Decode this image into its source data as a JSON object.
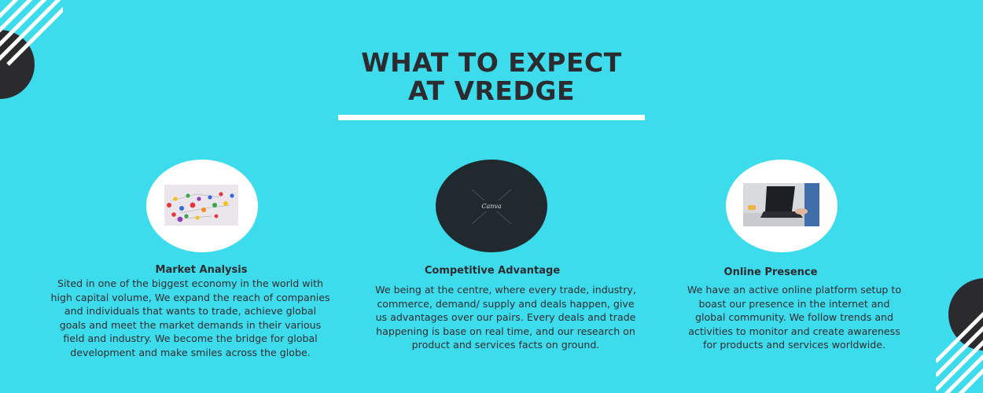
{
  "title": {
    "line1": "WHAT TO EXPECT",
    "line2": "AT VREDGE"
  },
  "colors": {
    "background": "#3ddcec",
    "text": "#2c2c30",
    "circle": "#ffffff",
    "dark_circle": "#20292d",
    "underline": "#ffffff",
    "decoration": "#2b2b2e"
  },
  "cards": [
    {
      "heading": "Market Analysis",
      "image": "pawn-network-photo",
      "body": "Sited in one of the biggest economy in the world with high capital volume, We expand the reach of companies and individuals that wants to trade, achieve global goals and meet the market demands in their various field and industry. We become the bridge for global development and make smiles across the globe."
    },
    {
      "heading": "Competitive Advantage",
      "image": "canva-placeholder",
      "image_text": "Canva",
      "body": "We being at the centre, where every trade, industry, commerce, demand/ supply and deals happen, give us advantages over our pairs. Every deals and trade happening is base on real time, and our research on product and services facts on ground."
    },
    {
      "heading": "Online Presence",
      "image": "laptop-photo",
      "body": "We have an active online platform setup to boast our presence in the internet and global community. We follow trends and activities to monitor and create awareness for products and services worldwide."
    }
  ]
}
